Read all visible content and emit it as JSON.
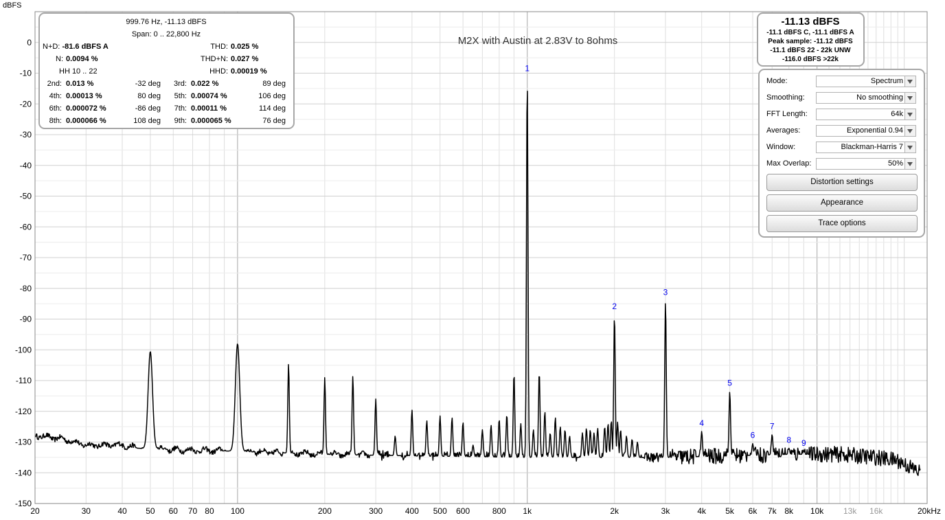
{
  "chart_data": {
    "type": "line",
    "title": "M2X with Austin at 2.83V to 8ohms",
    "ylabel": "dBFS",
    "xlabel": "",
    "x_scale": "log",
    "xlim": [
      20,
      24000
    ],
    "ylim": [
      -150,
      10
    ],
    "grid": true,
    "y_ticks": [
      "0",
      "-10",
      "-20",
      "-30",
      "-40",
      "-50",
      "-60",
      "-70",
      "-80",
      "-90",
      "-100",
      "-110",
      "-120",
      "-130",
      "-140",
      "-150"
    ],
    "x_ticks": [
      "20",
      "30",
      "40",
      "50",
      "60",
      "70",
      "80",
      "100",
      "200",
      "300",
      "400",
      "500",
      "600",
      "800",
      "1k",
      "2k",
      "3k",
      "4k",
      "5k",
      "6k",
      "7k",
      "8k",
      "10k",
      "13k",
      "16k",
      "20kHz"
    ],
    "x_ticks_grey": [
      "13k",
      "16k"
    ],
    "noise_floor": [
      [
        20,
        -127.8
      ],
      [
        25,
        -129
      ],
      [
        30,
        -131
      ],
      [
        40,
        -131
      ],
      [
        45,
        -132
      ],
      [
        60,
        -132.5
      ],
      [
        100,
        -133
      ],
      [
        200,
        -134
      ],
      [
        400,
        -134.5
      ],
      [
        1000,
        -135
      ],
      [
        3000,
        -135
      ],
      [
        5000,
        -134.5
      ],
      [
        8000,
        -134
      ],
      [
        12000,
        -134
      ],
      [
        16000,
        -135
      ],
      [
        19000,
        -136
      ],
      [
        22800,
        -140
      ]
    ],
    "spikes": [
      {
        "f": 50,
        "level": -100.5,
        "wide": true
      },
      {
        "f": 100,
        "level": -98,
        "wide": true
      },
      {
        "f": 150,
        "level": -104.5
      },
      {
        "f": 200,
        "level": -109
      },
      {
        "f": 250,
        "level": -108.5
      },
      {
        "f": 300,
        "level": -116
      },
      {
        "f": 350,
        "level": -128
      },
      {
        "f": 400,
        "level": -119.5
      },
      {
        "f": 450,
        "level": -123
      },
      {
        "f": 500,
        "level": -121.5
      },
      {
        "f": 550,
        "level": -122
      },
      {
        "f": 600,
        "level": -123.5
      },
      {
        "f": 650,
        "level": -131
      },
      {
        "f": 700,
        "level": -126
      },
      {
        "f": 750,
        "level": -124.5
      },
      {
        "f": 800,
        "level": -122.5
      },
      {
        "f": 850,
        "level": -121
      },
      {
        "f": 900,
        "level": -107.5
      },
      {
        "f": 950,
        "level": -124
      },
      {
        "f": 999.76,
        "level": -11.13
      },
      {
        "f": 1050,
        "level": -126
      },
      {
        "f": 1100,
        "level": -107
      },
      {
        "f": 1150,
        "level": -120
      },
      {
        "f": 1200,
        "level": -127
      },
      {
        "f": 1250,
        "level": -122
      },
      {
        "f": 1300,
        "level": -125
      },
      {
        "f": 1350,
        "level": -126
      },
      {
        "f": 1400,
        "level": -128
      },
      {
        "f": 1550,
        "level": -127
      },
      {
        "f": 1600,
        "level": -125.5
      },
      {
        "f": 1650,
        "level": -126
      },
      {
        "f": 1700,
        "level": -127
      },
      {
        "f": 1750,
        "level": -125.5
      },
      {
        "f": 1850,
        "level": -125
      },
      {
        "f": 1900,
        "level": -124
      },
      {
        "f": 1950,
        "level": -123
      },
      {
        "f": 2000,
        "level": -88.5
      },
      {
        "f": 2050,
        "level": -123.5
      },
      {
        "f": 2100,
        "level": -126
      },
      {
        "f": 2200,
        "level": -128
      },
      {
        "f": 2300,
        "level": -129
      },
      {
        "f": 2400,
        "level": -130
      },
      {
        "f": 3000,
        "level": -84
      },
      {
        "f": 4000,
        "level": -126.5
      },
      {
        "f": 5000,
        "level": -113.5
      },
      {
        "f": 6000,
        "level": -130.5
      },
      {
        "f": 7000,
        "level": -127.5
      },
      {
        "f": 8000,
        "level": -132
      },
      {
        "f": 9000,
        "level": -133
      }
    ],
    "harmonic_markers": [
      {
        "label": "1",
        "f": 999.76,
        "level": -11.13
      },
      {
        "label": "2",
        "f": 2000,
        "level": -88.5
      },
      {
        "label": "3",
        "f": 3000,
        "level": -84
      },
      {
        "label": "4",
        "f": 4000,
        "level": -126.5
      },
      {
        "label": "5",
        "f": 5000,
        "level": -113.5
      },
      {
        "label": "6",
        "f": 6000,
        "level": -130.5
      },
      {
        "label": "7",
        "f": 7000,
        "level": -127.5
      },
      {
        "label": "8",
        "f": 8000,
        "level": -132
      },
      {
        "label": "9",
        "f": 9000,
        "level": -133
      }
    ],
    "colors": {
      "trace": "#000000",
      "marker": "#0000ee",
      "grid": "#dedede",
      "grid_decade": "#b4b4b4",
      "axis_text": "#000000",
      "grey_tick": "#999999"
    }
  },
  "info_panel": {
    "freq_level": "999.76 Hz, -11.13 dBFS",
    "span_label": "Span:",
    "span_value": "0 .. 22,800 Hz",
    "nd_label": "N+D:",
    "nd_value": "-81.6 dBFS A",
    "thd_label": "THD:",
    "thd_value": "0.025 %",
    "n_label": "N:",
    "n_value": "0.0094 %",
    "thdn_label": "THD+N:",
    "thdn_value": "0.027 %",
    "hh_label": "HH 10 .. 22",
    "hhd_label": "HHD:",
    "hhd_value": "0.00019 %",
    "harmonics": [
      {
        "name": "2nd:",
        "value": "0.013 %",
        "deg": "-32 deg"
      },
      {
        "name": "3rd:",
        "value": "0.022 %",
        "deg": "89 deg"
      },
      {
        "name": "4th:",
        "value": "0.00013 %",
        "deg": "80 deg"
      },
      {
        "name": "5th:",
        "value": "0.00074 %",
        "deg": "106 deg"
      },
      {
        "name": "6th:",
        "value": "0.000072 %",
        "deg": "-86 deg"
      },
      {
        "name": "7th:",
        "value": "0.00011 %",
        "deg": "114 deg"
      },
      {
        "name": "8th:",
        "value": "0.000066 %",
        "deg": "108 deg"
      },
      {
        "name": "9th:",
        "value": "0.000065 %",
        "deg": "76 deg"
      }
    ]
  },
  "level_panel": {
    "main": "-11.13 dBFS",
    "line1": "-11.1 dBFS C, -11.1 dBFS A",
    "line2": "Peak sample: -11.12 dBFS",
    "line3": "-11.1 dBFS 22 - 22k UNW",
    "line4": "-116.0 dBFS >22k"
  },
  "settings": {
    "mode_label": "Mode:",
    "mode_value": "Spectrum",
    "smoothing_label": "Smoothing:",
    "smoothing_value": "No  smoothing",
    "fft_label": "FFT Length:",
    "fft_value": "64k",
    "averages_label": "Averages:",
    "averages_value": "Exponential 0.94",
    "window_label": "Window:",
    "window_value": "Blackman-Harris 7",
    "overlap_label": "Max Overlap:",
    "overlap_value": "50%",
    "distortion_button": "Distortion settings",
    "appearance_button": "Appearance",
    "trace_button": "Trace options"
  }
}
